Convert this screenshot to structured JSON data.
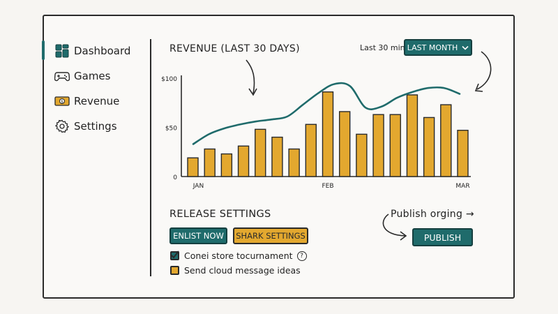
{
  "sidebar": {
    "items": [
      {
        "label": "Dashboard",
        "icon": "dashboard-icon",
        "active": true
      },
      {
        "label": "Games",
        "icon": "gamepad-icon"
      },
      {
        "label": "Revenue",
        "icon": "money-icon"
      },
      {
        "label": "Settings",
        "icon": "gear-icon"
      }
    ]
  },
  "header": {
    "title": "REVENUE (LAST 30 DAYS)",
    "range_label": "Last 30 min",
    "range_dropdown": "LAST MONTH"
  },
  "chart_data": {
    "type": "bar",
    "title": "REVENUE (LAST 30 DAYS)",
    "y_ticks": [
      "$100",
      "$50",
      "0"
    ],
    "x_ticks": [
      "JAN",
      "FEB",
      "MAR"
    ],
    "ylim": [
      0,
      100
    ],
    "values": [
      19,
      28,
      23,
      31,
      48,
      40,
      28,
      53,
      86,
      66,
      43,
      63,
      63,
      83,
      60,
      73,
      47
    ],
    "trend_line": [
      33,
      43,
      49,
      53,
      56,
      58,
      61,
      73,
      85,
      94,
      92,
      70,
      71,
      80,
      86,
      90,
      90,
      84
    ],
    "colors": {
      "bars": "#e3a82f",
      "line": "#1f6b6b"
    }
  },
  "release": {
    "title": "RELEASE SETTINGS",
    "buttons": {
      "enlist": "ENLIST NOW",
      "shark": "SHARK SETTINGS"
    },
    "options": [
      {
        "label": "Conei store tocurnament",
        "checked": true,
        "help": "?"
      },
      {
        "label": "Send cloud message ideas",
        "checked": false
      }
    ]
  },
  "publish": {
    "hint": "Publish orging →",
    "button": "PUBLISH"
  },
  "colors": {
    "accent": "#1f6b6b",
    "gold": "#e3a82f",
    "ink": "#2a2a2a"
  }
}
